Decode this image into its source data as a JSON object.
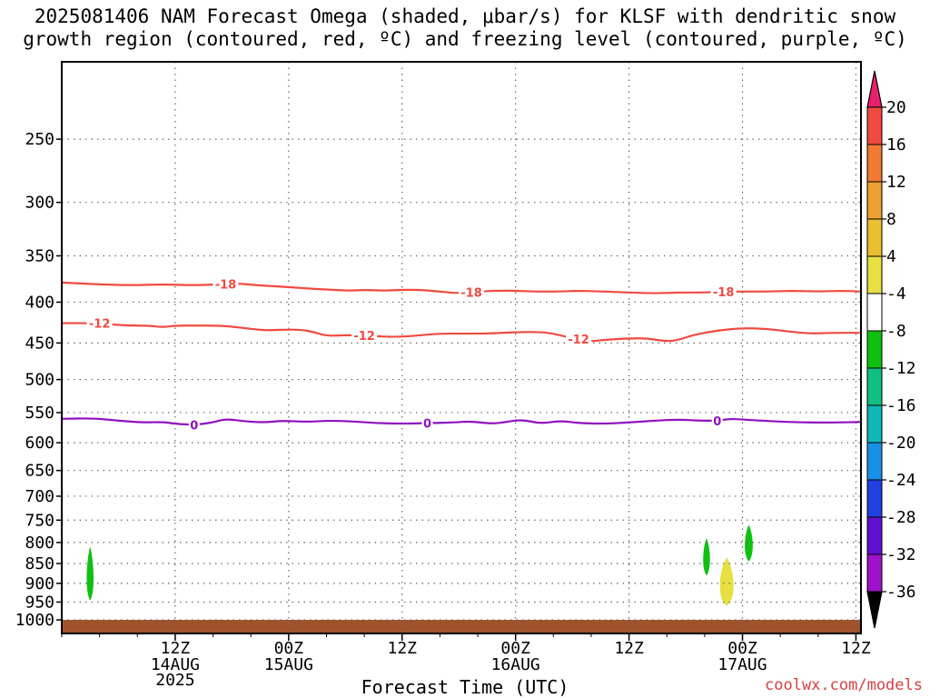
{
  "title": {
    "line1": "2025081406 NAM Forecast Omega (shaded, μbar/s) for KLSF with dendritic snow",
    "line2": "growth region (contoured, red, ºC) and freezing level (contoured, purple, ºC)"
  },
  "chart_data": {
    "type": "heatmap",
    "title": "2025081406 NAM Forecast Omega (shaded, μbar/s) for KLSF with dendritic snow growth region (contoured, red, ºC) and freezing level (contoured, purple, ºC)",
    "xlabel": "Forecast Time (UTC)",
    "ylabel": "",
    "x_ticks": [
      {
        "hour": 18,
        "label1": "12Z",
        "label2": "14AUG",
        "label3": "2025"
      },
      {
        "hour": 36,
        "label1": "00Z",
        "label2": "15AUG",
        "label3": ""
      },
      {
        "hour": 54,
        "label1": "12Z",
        "label2": "",
        "label3": ""
      },
      {
        "hour": 72,
        "label1": "00Z",
        "label2": "16AUG",
        "label3": ""
      },
      {
        "hour": 90,
        "label1": "12Z",
        "label2": "",
        "label3": ""
      },
      {
        "hour": 108,
        "label1": "00Z",
        "label2": "17AUG",
        "label3": ""
      },
      {
        "hour": 126,
        "label1": "12Z",
        "label2": "",
        "label3": ""
      }
    ],
    "xlim_hours": [
      0,
      126.8
    ],
    "y_ticks": [
      250,
      300,
      350,
      400,
      450,
      500,
      550,
      600,
      650,
      700,
      750,
      800,
      850,
      900,
      950,
      1000
    ],
    "y_scale": "log-pressure",
    "ylim_hPa": [
      1040,
      200
    ],
    "grid": true,
    "colorbar": {
      "levels": [
        20,
        16,
        12,
        8,
        4,
        -4,
        -8,
        -12,
        -16,
        -20,
        -24,
        -28,
        -32,
        -36
      ],
      "colors": [
        "#e8206e",
        "#f04a40",
        "#f07a30",
        "#eca030",
        "#e8c030",
        "#e8e040",
        "#ffffff",
        "#10c010",
        "#10c080",
        "#10b8b8",
        "#1890e8",
        "#2040e0",
        "#6010d0",
        "#a010c8",
        "#a0a0a0",
        "#000000"
      ]
    },
    "contours": [
      {
        "name": "-18",
        "color": "#f04a40",
        "label": "-18",
        "points": [
          [
            0,
            378
          ],
          [
            6,
            380
          ],
          [
            11,
            381
          ],
          [
            16,
            380
          ],
          [
            21,
            381
          ],
          [
            25,
            380
          ],
          [
            28,
            379
          ],
          [
            31,
            381
          ],
          [
            36,
            383
          ],
          [
            40,
            385
          ],
          [
            43,
            386
          ],
          [
            46,
            387
          ],
          [
            48,
            386
          ],
          [
            51,
            387
          ],
          [
            54,
            386
          ],
          [
            57,
            386
          ],
          [
            60,
            388
          ],
          [
            63,
            390
          ],
          [
            66,
            388
          ],
          [
            69,
            387
          ],
          [
            72,
            387
          ],
          [
            75,
            388
          ],
          [
            79,
            388
          ],
          [
            82,
            387
          ],
          [
            86,
            388
          ],
          [
            90,
            389
          ],
          [
            94,
            390
          ],
          [
            98,
            389
          ],
          [
            102,
            389
          ],
          [
            105,
            388
          ],
          [
            108,
            388
          ],
          [
            112,
            388
          ],
          [
            116,
            387
          ],
          [
            120,
            388
          ],
          [
            124,
            387
          ],
          [
            126.8,
            388
          ]
        ],
        "label_hours": [
          26,
          65,
          105
        ]
      },
      {
        "name": "-12",
        "color": "#f04a40",
        "label": "-12",
        "points": [
          [
            0,
            425
          ],
          [
            6,
            425
          ],
          [
            10,
            428
          ],
          [
            14,
            428
          ],
          [
            16,
            430
          ],
          [
            18,
            428
          ],
          [
            21,
            428
          ],
          [
            25,
            428
          ],
          [
            28,
            430
          ],
          [
            32,
            434
          ],
          [
            35,
            433
          ],
          [
            38,
            433
          ],
          [
            40,
            436
          ],
          [
            42,
            441
          ],
          [
            45,
            440
          ],
          [
            48,
            440
          ],
          [
            51,
            442
          ],
          [
            54,
            442
          ],
          [
            57,
            440
          ],
          [
            60,
            438
          ],
          [
            64,
            438
          ],
          [
            67,
            438
          ],
          [
            70,
            437
          ],
          [
            73,
            436
          ],
          [
            76,
            436
          ],
          [
            78,
            438
          ],
          [
            80,
            442
          ],
          [
            82,
            445
          ],
          [
            84,
            448
          ],
          [
            86,
            446
          ],
          [
            90,
            444
          ],
          [
            93,
            444
          ],
          [
            96,
            448
          ],
          [
            98,
            446
          ],
          [
            100,
            440
          ],
          [
            104,
            434
          ],
          [
            108,
            431
          ],
          [
            112,
            432
          ],
          [
            116,
            436
          ],
          [
            119,
            438
          ],
          [
            122,
            437
          ],
          [
            126.8,
            437
          ]
        ],
        "label_hours": [
          6,
          48,
          82
        ]
      },
      {
        "name": "0",
        "color": "#9010c0",
        "label": "0",
        "points": [
          [
            0,
            560
          ],
          [
            5,
            559
          ],
          [
            9,
            563
          ],
          [
            13,
            566
          ],
          [
            16,
            565
          ],
          [
            18,
            568
          ],
          [
            21,
            570
          ],
          [
            24,
            566
          ],
          [
            26,
            560
          ],
          [
            29,
            564
          ],
          [
            32,
            566
          ],
          [
            35,
            563
          ],
          [
            39,
            565
          ],
          [
            42,
            563
          ],
          [
            46,
            564
          ],
          [
            50,
            567
          ],
          [
            54,
            568
          ],
          [
            58,
            567
          ],
          [
            62,
            566
          ],
          [
            65,
            564
          ],
          [
            68,
            568
          ],
          [
            70,
            566
          ],
          [
            73,
            561
          ],
          [
            76,
            568
          ],
          [
            79,
            563
          ],
          [
            82,
            567
          ],
          [
            86,
            568
          ],
          [
            90,
            566
          ],
          [
            94,
            563
          ],
          [
            98,
            561
          ],
          [
            101,
            563
          ],
          [
            104,
            563
          ],
          [
            106,
            560
          ],
          [
            108,
            561
          ],
          [
            111,
            563
          ],
          [
            115,
            565
          ],
          [
            119,
            566
          ],
          [
            123,
            566
          ],
          [
            126.8,
            565
          ]
        ],
        "label_hours": [
          21,
          58,
          104
        ]
      }
    ],
    "shaded_regions": [
      {
        "name": "omega-neg-left",
        "color": "#10c010",
        "cx_hour": 4.5,
        "p_top": 810,
        "p_bottom": 945,
        "half_width_hours": 0.6
      },
      {
        "name": "omega-neg-mid",
        "color": "#10c010",
        "cx_hour": 102.3,
        "p_top": 790,
        "p_bottom": 880,
        "half_width_hours": 0.6
      },
      {
        "name": "omega-neg-right",
        "color": "#10c010",
        "cx_hour": 109,
        "p_top": 760,
        "p_bottom": 845,
        "half_width_hours": 0.7
      },
      {
        "name": "omega-pos",
        "color": "#e8e040",
        "cx_hour": 105.5,
        "p_top": 835,
        "p_bottom": 960,
        "half_width_hours": 1.2
      }
    ],
    "terrain": {
      "color": "#a0522d",
      "p_top": 1000
    }
  },
  "footer": {
    "xlabel": "Forecast Time (UTC)",
    "credit": "coolwx.com/models"
  }
}
